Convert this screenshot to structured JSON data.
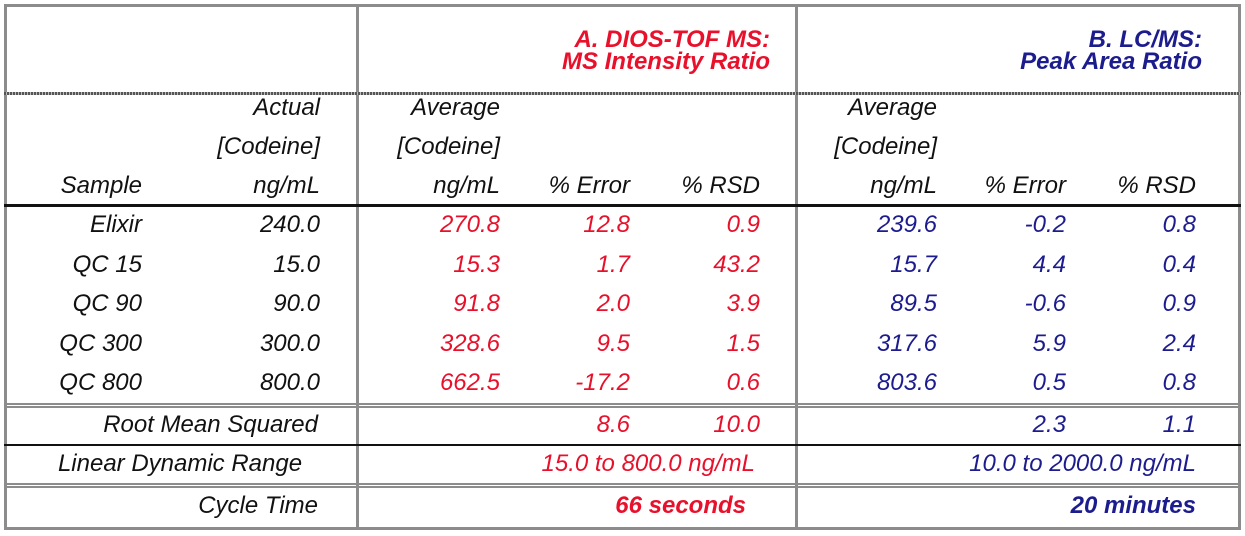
{
  "colors": {
    "dios": "#e8102a",
    "lcms": "#1c1c8e",
    "text": "#111111",
    "border": "#8c8c8c"
  },
  "header": {
    "section_a_line1": "A.  DIOS-TOF MS:",
    "section_a_line2": "MS Intensity Ratio",
    "section_b_line1": "B. LC/MS:",
    "section_b_line2": "Peak Area Ratio"
  },
  "columns": {
    "sample": "Sample",
    "actual_1": "Actual",
    "actual_2": "[Codeine]",
    "actual_3": "ng/mL",
    "avg_1": "Average",
    "avg_2": "[Codeine]",
    "avg_3": "ng/mL",
    "error": "% Error",
    "rsd": "% RSD"
  },
  "rows": [
    {
      "sample": "Elixir",
      "actual": "240.0",
      "a_avg": "270.8",
      "a_err": "12.8",
      "a_rsd": "0.9",
      "b_avg": "239.6",
      "b_err": "-0.2",
      "b_rsd": "0.8"
    },
    {
      "sample": "QC 15",
      "actual": "15.0",
      "a_avg": "15.3",
      "a_err": "1.7",
      "a_rsd": "43.2",
      "b_avg": "15.7",
      "b_err": "4.4",
      "b_rsd": "0.4"
    },
    {
      "sample": "QC 90",
      "actual": "90.0",
      "a_avg": "91.8",
      "a_err": "2.0",
      "a_rsd": "3.9",
      "b_avg": "89.5",
      "b_err": "-0.6",
      "b_rsd": "0.9"
    },
    {
      "sample": "QC 300",
      "actual": "300.0",
      "a_avg": "328.6",
      "a_err": "9.5",
      "a_rsd": "1.5",
      "b_avg": "317.6",
      "b_err": "5.9",
      "b_rsd": "2.4"
    },
    {
      "sample": "QC 800",
      "actual": "800.0",
      "a_avg": "662.5",
      "a_err": "-17.2",
      "a_rsd": "0.6",
      "b_avg": "803.6",
      "b_err": "0.5",
      "b_rsd": "0.8"
    }
  ],
  "summary": {
    "rms_label": "Root Mean Squared",
    "rms_a_err": "8.6",
    "rms_a_rsd": "10.0",
    "rms_b_err": "2.3",
    "rms_b_rsd": "1.1",
    "ldr_label": "Linear Dynamic Range",
    "ldr_a": "15.0 to 800.0 ng/mL",
    "ldr_b": "10.0 to 2000.0 ng/mL",
    "cycle_label": "Cycle Time",
    "cycle_a": "66 seconds",
    "cycle_b": "20 minutes"
  }
}
